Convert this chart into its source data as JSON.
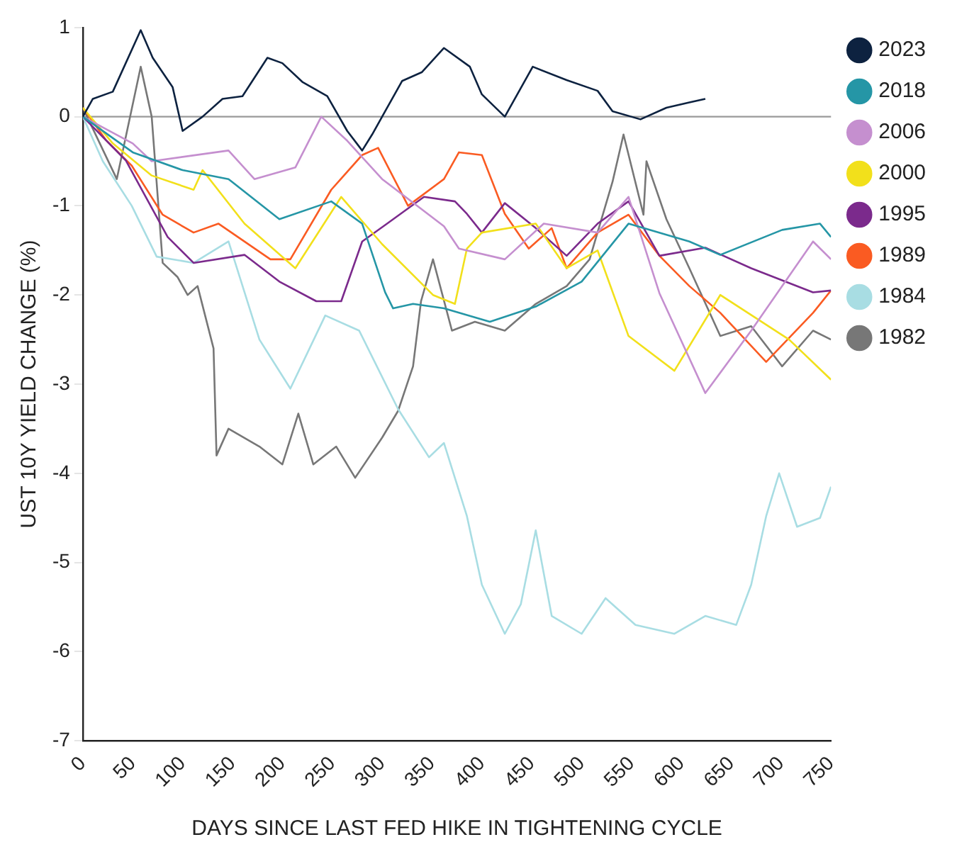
{
  "chart_data": {
    "type": "line",
    "xlabel": "DAYS SINCE LAST FED HIKE IN TIGHTENING CYCLE",
    "ylabel": "UST 10Y YIELD CHANGE (%)",
    "xlim": [
      0,
      750
    ],
    "xticks": [
      0,
      50,
      100,
      150,
      200,
      250,
      300,
      350,
      400,
      450,
      500,
      550,
      600,
      650,
      700,
      750
    ],
    "ylim": [
      -7,
      1
    ],
    "yticks": [
      -7,
      -6,
      -5,
      -4,
      -3,
      -2,
      -1,
      0,
      1
    ],
    "grid": false,
    "legend": "right",
    "marker": "none",
    "line_style": "solid",
    "ref_lines": [
      {
        "axis": "y",
        "value": 0,
        "color": "#999999"
      }
    ],
    "series": [
      {
        "name": "2023",
        "color": "#0d2240",
        "x": [
          0,
          10,
          30,
          58,
          70,
          90,
          100,
          120,
          140,
          160,
          185,
          200,
          220,
          245,
          265,
          280,
          290,
          300,
          320,
          340,
          362,
          388,
          400,
          423,
          451,
          485,
          516,
          531,
          559,
          585,
          608,
          624
        ],
        "values": [
          0,
          0.2,
          0.28,
          0.97,
          0.66,
          0.33,
          -0.16,
          0,
          0.2,
          0.23,
          0.66,
          0.6,
          0.39,
          0.23,
          -0.16,
          -0.38,
          -0.2,
          0,
          0.4,
          0.5,
          0.77,
          0.56,
          0.25,
          0,
          0.56,
          0.41,
          0.29,
          0.06,
          -0.03,
          0.1,
          0.16,
          0.2
        ]
      },
      {
        "name": "2018",
        "color": "#2596a6",
        "x": [
          0,
          50,
          100,
          146,
          197,
          249,
          280,
          303,
          311,
          331,
          362,
          408,
          454,
          500,
          547,
          608,
          639,
          701,
          739,
          750
        ],
        "values": [
          0,
          -0.4,
          -0.6,
          -0.7,
          -1.15,
          -0.95,
          -1.2,
          -1.97,
          -2.15,
          -2.1,
          -2.15,
          -2.3,
          -2.13,
          -1.85,
          -1.2,
          -1.4,
          -1.55,
          -1.27,
          -1.2,
          -1.35
        ]
      },
      {
        "name": "2006",
        "color": "#c58fcf",
        "x": [
          0,
          50,
          69,
          146,
          172,
          213,
          239,
          265,
          300,
          362,
          377,
          423,
          462,
          516,
          547,
          578,
          624,
          670,
          732,
          750
        ],
        "values": [
          0,
          -0.3,
          -0.5,
          -0.38,
          -0.7,
          -0.57,
          0,
          -0.27,
          -0.7,
          -1.23,
          -1.48,
          -1.6,
          -1.2,
          -1.3,
          -0.9,
          -1.98,
          -3.1,
          -2.4,
          -1.4,
          -1.6
        ]
      },
      {
        "name": "2000",
        "color": "#f2e01b",
        "x": [
          0,
          30,
          69,
          111,
          120,
          162,
          213,
          259,
          300,
          351,
          373,
          385,
          400,
          454,
          485,
          516,
          547,
          593,
          639,
          708,
          750
        ],
        "values": [
          0.1,
          -0.3,
          -0.66,
          -0.82,
          -0.6,
          -1.2,
          -1.7,
          -0.9,
          -1.43,
          -2,
          -2.1,
          -1.48,
          -1.3,
          -1.2,
          -1.7,
          -1.5,
          -2.46,
          -2.85,
          -2,
          -2.5,
          -2.95
        ]
      },
      {
        "name": "1995",
        "color": "#7b2a8c",
        "x": [
          0,
          43,
          85,
          111,
          162,
          197,
          234,
          259,
          280,
          305,
          342,
          373,
          385,
          400,
          423,
          454,
          485,
          516,
          547,
          578,
          624,
          670,
          732,
          750
        ],
        "values": [
          0,
          -0.49,
          -1.35,
          -1.64,
          -1.55,
          -1.85,
          -2.07,
          -2.07,
          -1.4,
          -1.2,
          -0.9,
          -0.95,
          -1.09,
          -1.3,
          -0.97,
          -1.25,
          -1.56,
          -1.2,
          -0.95,
          -1.56,
          -1.47,
          -1.7,
          -1.97,
          -1.95
        ]
      },
      {
        "name": "1989",
        "color": "#fa5b22",
        "x": [
          0,
          23,
          49,
          80,
          111,
          136,
          188,
          208,
          249,
          280,
          296,
          326,
          362,
          377,
          400,
          423,
          447,
          470,
          485,
          516,
          547,
          578,
          608,
          639,
          685,
          732,
          750
        ],
        "values": [
          0.1,
          -0.26,
          -0.55,
          -1.1,
          -1.3,
          -1.2,
          -1.6,
          -1.6,
          -0.82,
          -0.43,
          -0.35,
          -1,
          -0.7,
          -0.4,
          -0.43,
          -1.09,
          -1.48,
          -1.25,
          -1.7,
          -1.3,
          -1.1,
          -1.56,
          -1.9,
          -2.2,
          -2.75,
          -2.2,
          -1.95
        ]
      },
      {
        "name": "1984",
        "color": "#a8dde3",
        "x": [
          0,
          20,
          49,
          74,
          111,
          146,
          177,
          208,
          243,
          277,
          316,
          347,
          362,
          385,
          400,
          423,
          439,
          454,
          470,
          500,
          524,
          554,
          593,
          624,
          655,
          670,
          685,
          698,
          716,
          739,
          750
        ],
        "values": [
          0,
          -0.5,
          -1,
          -1.57,
          -1.64,
          -1.4,
          -2.5,
          -3.05,
          -2.23,
          -2.4,
          -3.28,
          -3.82,
          -3.66,
          -4.48,
          -5.25,
          -5.8,
          -5.47,
          -4.64,
          -5.6,
          -5.8,
          -5.4,
          -5.7,
          -5.8,
          -5.6,
          -5.7,
          -5.25,
          -4.48,
          -4,
          -4.6,
          -4.5,
          -4.15
        ]
      },
      {
        "name": "1982",
        "color": "#777777",
        "x": [
          0,
          34,
          58,
          69,
          80,
          95,
          105,
          115,
          131,
          134,
          146,
          177,
          200,
          216,
          231,
          254,
          273,
          300,
          316,
          331,
          339,
          351,
          370,
          393,
          423,
          454,
          485,
          508,
          531,
          542,
          562,
          565,
          585,
          608,
          639,
          670,
          701,
          732,
          750
        ],
        "values": [
          0.1,
          -0.7,
          0.56,
          0,
          -1.64,
          -1.8,
          -2,
          -1.9,
          -2.6,
          -3.8,
          -3.5,
          -3.7,
          -3.9,
          -3.33,
          -3.9,
          -3.7,
          -4.05,
          -3.6,
          -3.3,
          -2.8,
          -2.07,
          -1.6,
          -2.4,
          -2.3,
          -2.4,
          -2.1,
          -1.9,
          -1.6,
          -0.73,
          -0.2,
          -1.1,
          -0.5,
          -1.15,
          -1.7,
          -2.46,
          -2.35,
          -2.8,
          -2.4,
          -2.5
        ]
      }
    ]
  }
}
